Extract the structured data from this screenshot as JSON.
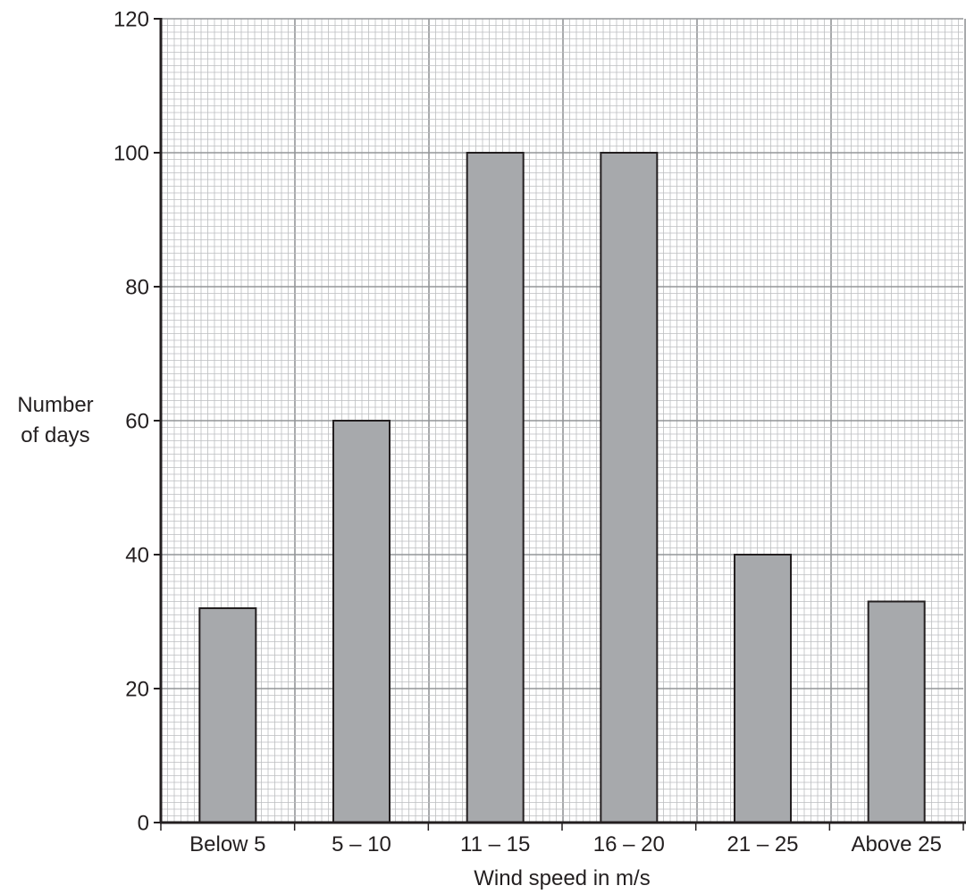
{
  "chart_data": {
    "type": "bar",
    "categories": [
      "Below 5",
      "5 – 10",
      "11 – 15",
      "16 – 20",
      "21 – 25",
      "Above 25"
    ],
    "values": [
      32,
      60,
      100,
      100,
      40,
      33
    ],
    "xlabel": "Wind speed in m/s",
    "ylabel": [
      "Number",
      "of days"
    ],
    "ylim": [
      0,
      120
    ],
    "yticks": [
      "0",
      "20",
      "40",
      "60",
      "80",
      "100",
      "120"
    ],
    "grid": true,
    "colors": {
      "bar_fill": "#a7a9ac",
      "bar_stroke": "#231f20",
      "grid_major": "#939598",
      "grid_minor": "#bcbec0",
      "axis": "#231f20"
    }
  }
}
